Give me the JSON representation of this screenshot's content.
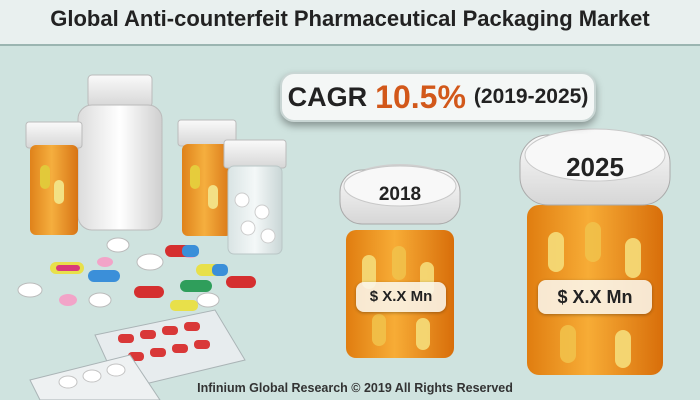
{
  "header": {
    "title": "Global Anti-counterfeit Pharmaceutical Packaging Market"
  },
  "cagr": {
    "label": "CAGR",
    "value": "10.5%",
    "period": "(2019-2025)"
  },
  "jars": [
    {
      "year": "2018",
      "value": "$ X.X Mn"
    },
    {
      "year": "2025",
      "value": "$ X.X Mn"
    }
  ],
  "footer": {
    "copyright": "Infinium Global Research © 2019 All Rights Reserved"
  },
  "colors": {
    "accent": "#d2581a",
    "jar": "#f09a1e",
    "background": "#cfe3df"
  }
}
